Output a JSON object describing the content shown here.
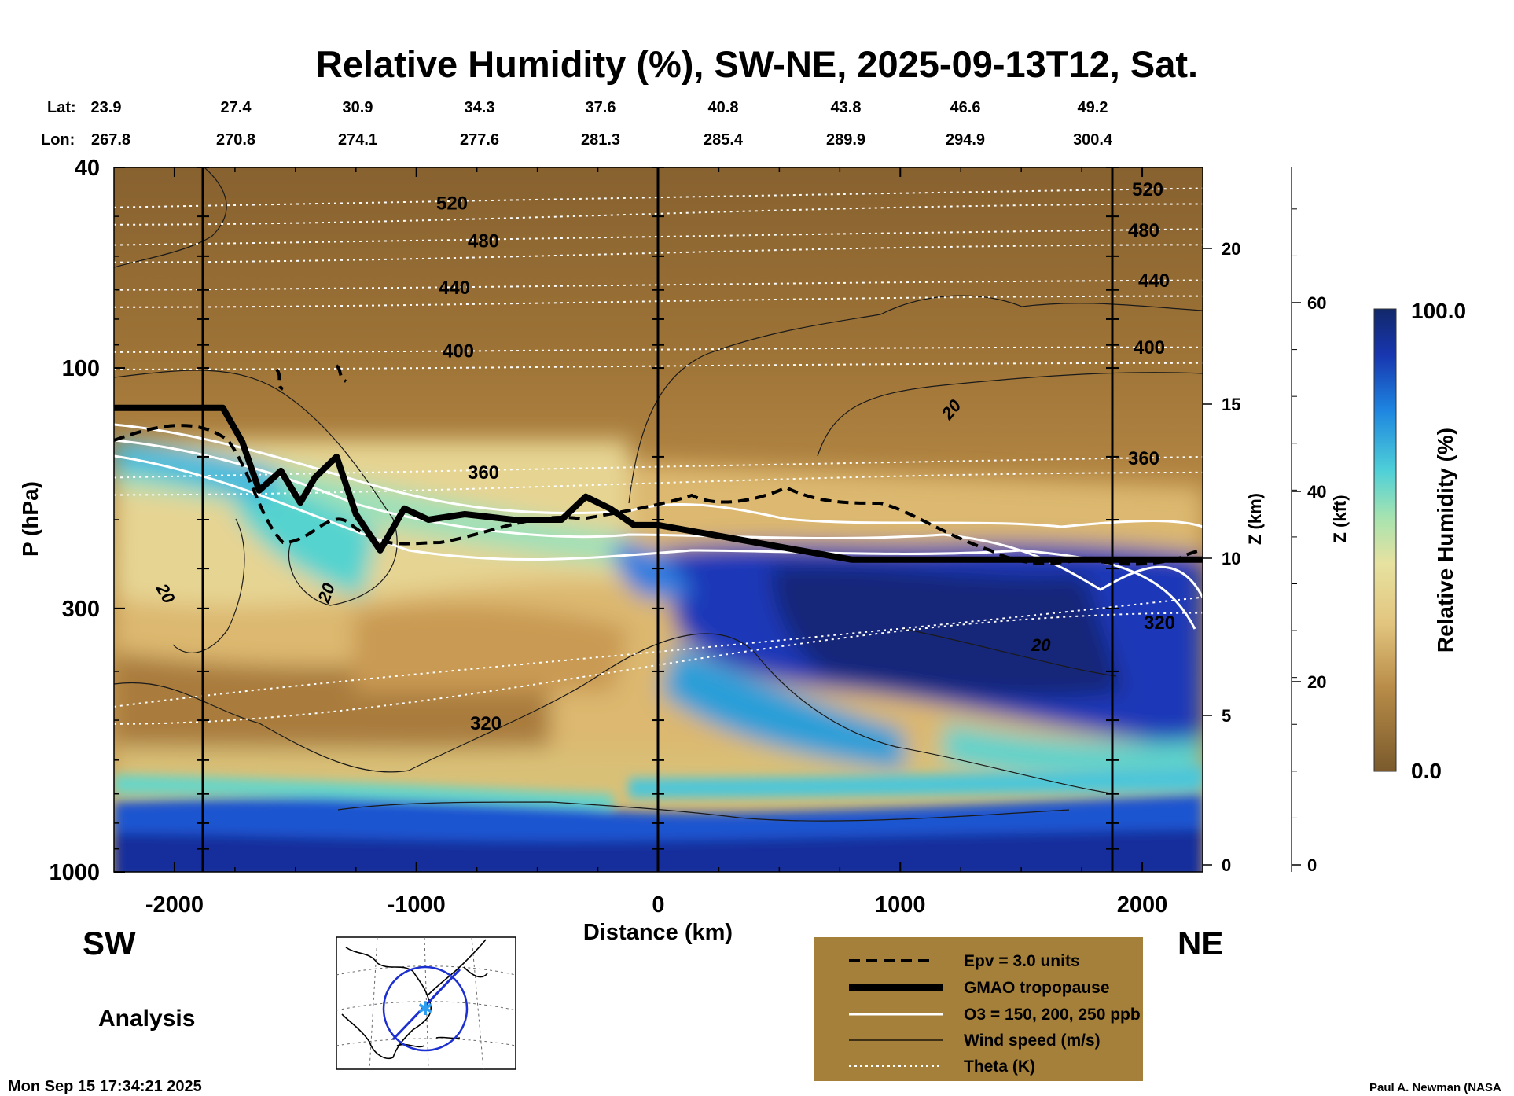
{
  "title": "Relative Humidity (%), SW-NE, 2025-09-13T12, Sat.",
  "coords": {
    "lat_label": "Lat:",
    "lon_label": "Lon:",
    "lat": [
      "23.9",
      "27.4",
      "30.9",
      "34.3",
      "37.6",
      "40.8",
      "43.8",
      "46.6",
      "49.2"
    ],
    "lon": [
      "267.8",
      "270.8",
      "274.1",
      "277.6",
      "281.3",
      "285.4",
      "289.9",
      "294.9",
      "300.4"
    ]
  },
  "chart_data": {
    "type": "heatmap",
    "title": "Relative Humidity (%), SW-NE, 2025-09-13T12, Sat.",
    "xlabel": "Distance (km)",
    "ylabel": "P (hPa)",
    "xlim": [
      -2250,
      2250
    ],
    "ylim": [
      1000,
      40
    ],
    "x_ticks": [
      "-2000",
      "-1000",
      "0",
      "1000",
      "2000"
    ],
    "y_ticks": [
      "40",
      "100",
      "300",
      "1000"
    ],
    "z_km_label": "Z (km)",
    "z_km_ticks": [
      "0",
      "5",
      "10",
      "15",
      "20"
    ],
    "z_kft_label": "Z (kft)",
    "z_kft_ticks": [
      "0",
      "20",
      "40",
      "60"
    ],
    "colorbar": {
      "label": "Relative Humidity (%)",
      "max_label": "100.0",
      "min_label": "0.0",
      "min": 0,
      "max": 100,
      "colors": [
        "#8a6532",
        "#c79c55",
        "#e8cf8a",
        "#cfe39a",
        "#7fdcc8",
        "#2fb8e0",
        "#1c5fd6",
        "#18309e",
        "#13286e"
      ]
    },
    "direction_left": "SW",
    "direction_right": "NE",
    "theta_labels": [
      "520",
      "480",
      "440",
      "400",
      "360",
      "320"
    ],
    "windspeed_labels": [
      "20",
      "20",
      "20",
      "20"
    ],
    "tropopause": {
      "x": [
        -2250,
        -1800,
        -1720,
        -1650,
        -1560,
        -1480,
        -1420,
        -1330,
        -1250,
        -1150,
        -1050,
        -950,
        -800,
        -600,
        -400,
        -300,
        -200,
        -100,
        0,
        800,
        2250
      ],
      "p": [
        120,
        120,
        140,
        175,
        160,
        185,
        165,
        150,
        195,
        230,
        190,
        200,
        195,
        200,
        200,
        180,
        190,
        205,
        205,
        240,
        240
      ]
    },
    "theta_levels": [
      {
        "label": "520",
        "p_left": 48,
        "p_right": 44
      },
      {
        "label": "480",
        "p_left": 57,
        "p_right": 53
      },
      {
        "label": "440",
        "p_left": 70,
        "p_right": 67
      },
      {
        "label": "400",
        "p_left": 93,
        "p_right": 91
      },
      {
        "label": "360",
        "p_left": 165,
        "p_right": 150
      },
      {
        "label": "320",
        "p_left": 470,
        "p_right": 285
      }
    ],
    "legend": [
      "Epv = 3.0 units",
      "GMAO tropopause",
      "O3 = 150, 200, 250 ppb",
      "Wind speed (m/s)",
      "Theta (K)"
    ]
  },
  "map_inset": {
    "alt": "Cross-section path map over North America"
  },
  "analysis_label": "Analysis",
  "timestamp": "Mon Sep 15 17:34:21 2025",
  "credit": "Paul A. Newman (NASA"
}
